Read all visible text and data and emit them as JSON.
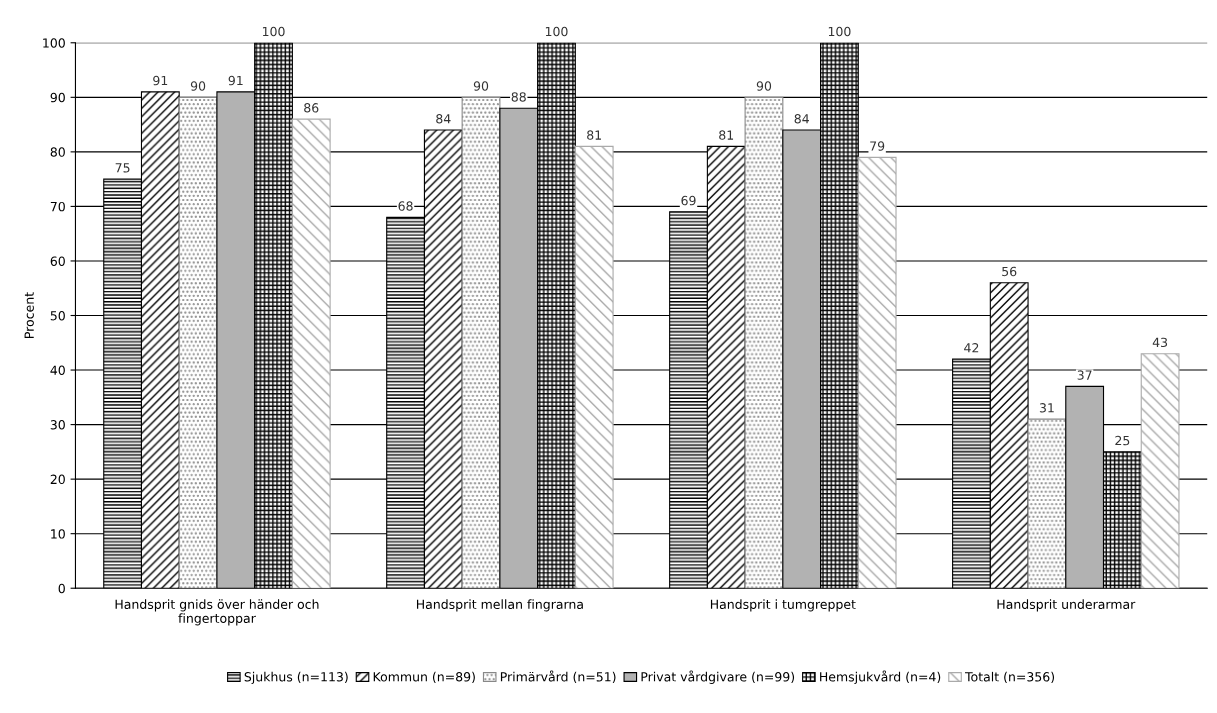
{
  "chart_data": {
    "type": "bar",
    "ylabel": "Procent",
    "categories": [
      "Handsprit gnids över händer och\nfingertoppar",
      "Handsprit mellan fingrarna",
      "Handsprit i tumgreppet",
      "Handsprit underarmar"
    ],
    "series": [
      {
        "name": "Sjukhus (n=113)",
        "color": "#000000",
        "values": [
          75,
          68,
          69,
          42
        ]
      },
      {
        "name": "Kommun (n=89)",
        "color": "#000000",
        "values": [
          91,
          84,
          81,
          56
        ]
      },
      {
        "name": "Primärvård (n=51)",
        "color": "#888888",
        "values": [
          90,
          90,
          90,
          31
        ]
      },
      {
        "name": "Privat vårdgivare (n=99)",
        "color": "#b2b2b2",
        "values": [
          91,
          88,
          84,
          37
        ]
      },
      {
        "name": "Hemsjukvård (n=4)",
        "color": "#000000",
        "values": [
          100,
          100,
          100,
          25
        ]
      },
      {
        "name": "Totalt (n=356)",
        "color": "#aaaaaa",
        "values": [
          86,
          81,
          79,
          43
        ]
      }
    ],
    "ylim": [
      0,
      100
    ],
    "yticks": [
      0,
      10,
      20,
      30,
      40,
      50,
      60,
      70,
      80,
      90,
      100
    ],
    "grid": "y",
    "legend": "bottom",
    "data_labels": true
  }
}
